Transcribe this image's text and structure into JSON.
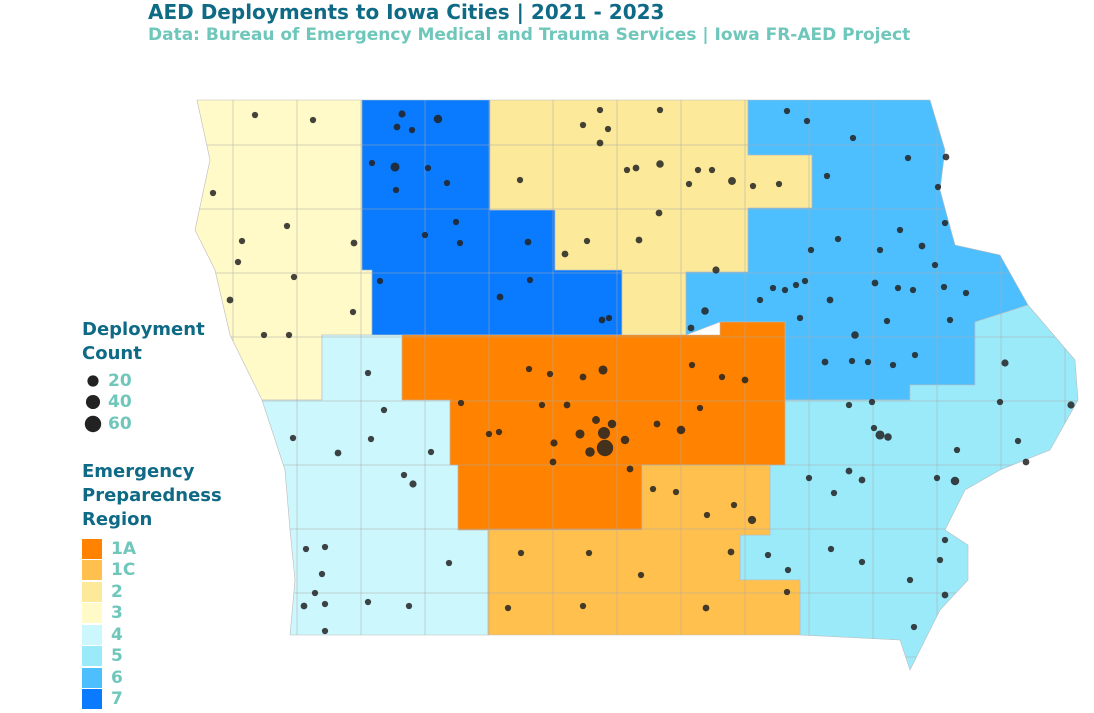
{
  "title": "AED Deployments to Iowa Cities | 2021 - 2023",
  "subtitle": "Data: Bureau of Emergency Medical and Trauma Services | Iowa FR-AED Project",
  "size_legend": {
    "title": "Deployment Count",
    "values": [
      20,
      40,
      60
    ]
  },
  "region_legend": {
    "title": "Emergency Preparedness Region",
    "items": [
      {
        "label": "1A",
        "color": "#ff8200"
      },
      {
        "label": "1C",
        "color": "#ffc04d"
      },
      {
        "label": "2",
        "color": "#fde99a"
      },
      {
        "label": "3",
        "color": "#fffac8"
      },
      {
        "label": "4",
        "color": "#ccf7fd"
      },
      {
        "label": "5",
        "color": "#9beafa"
      },
      {
        "label": "6",
        "color": "#4dbfff"
      },
      {
        "label": "7",
        "color": "#0a7bff"
      }
    ]
  },
  "cities": {
    "counts": [
      2,
      4,
      8,
      3,
      2,
      10,
      2,
      2,
      2,
      2,
      2,
      2,
      2,
      2,
      3,
      3,
      2,
      3,
      2,
      2,
      2,
      2,
      2,
      3,
      2,
      3,
      2,
      2,
      2,
      2,
      2,
      2,
      2,
      3,
      2,
      2,
      5,
      3,
      2,
      6,
      2,
      2,
      2,
      2,
      2,
      2,
      3,
      3,
      4,
      3,
      2,
      2,
      2,
      3,
      2,
      2,
      2,
      2,
      2,
      2,
      2,
      2,
      2,
      2,
      3,
      2,
      2,
      2,
      2,
      3,
      2,
      5,
      3,
      5,
      2,
      2,
      2,
      2,
      2,
      2,
      3,
      2,
      3,
      2,
      2,
      2,
      10,
      3,
      2,
      2,
      2,
      3,
      2,
      25,
      60,
      10,
      12,
      8,
      6,
      8,
      4,
      2,
      3,
      8,
      3,
      2,
      3,
      3,
      2,
      2,
      2,
      2,
      2,
      2,
      3,
      2,
      2,
      4,
      2,
      2,
      2,
      2,
      2,
      3,
      2,
      2,
      2,
      2,
      2,
      2,
      2,
      2,
      7,
      2,
      2,
      2,
      2,
      3,
      2,
      2,
      3,
      4,
      4,
      8,
      3,
      2,
      2,
      2,
      10,
      5,
      2,
      2,
      2,
      2,
      3,
      3,
      2,
      3,
      2,
      2,
      2,
      2,
      2,
      2,
      2,
      2,
      2,
      2
    ]
  }
}
